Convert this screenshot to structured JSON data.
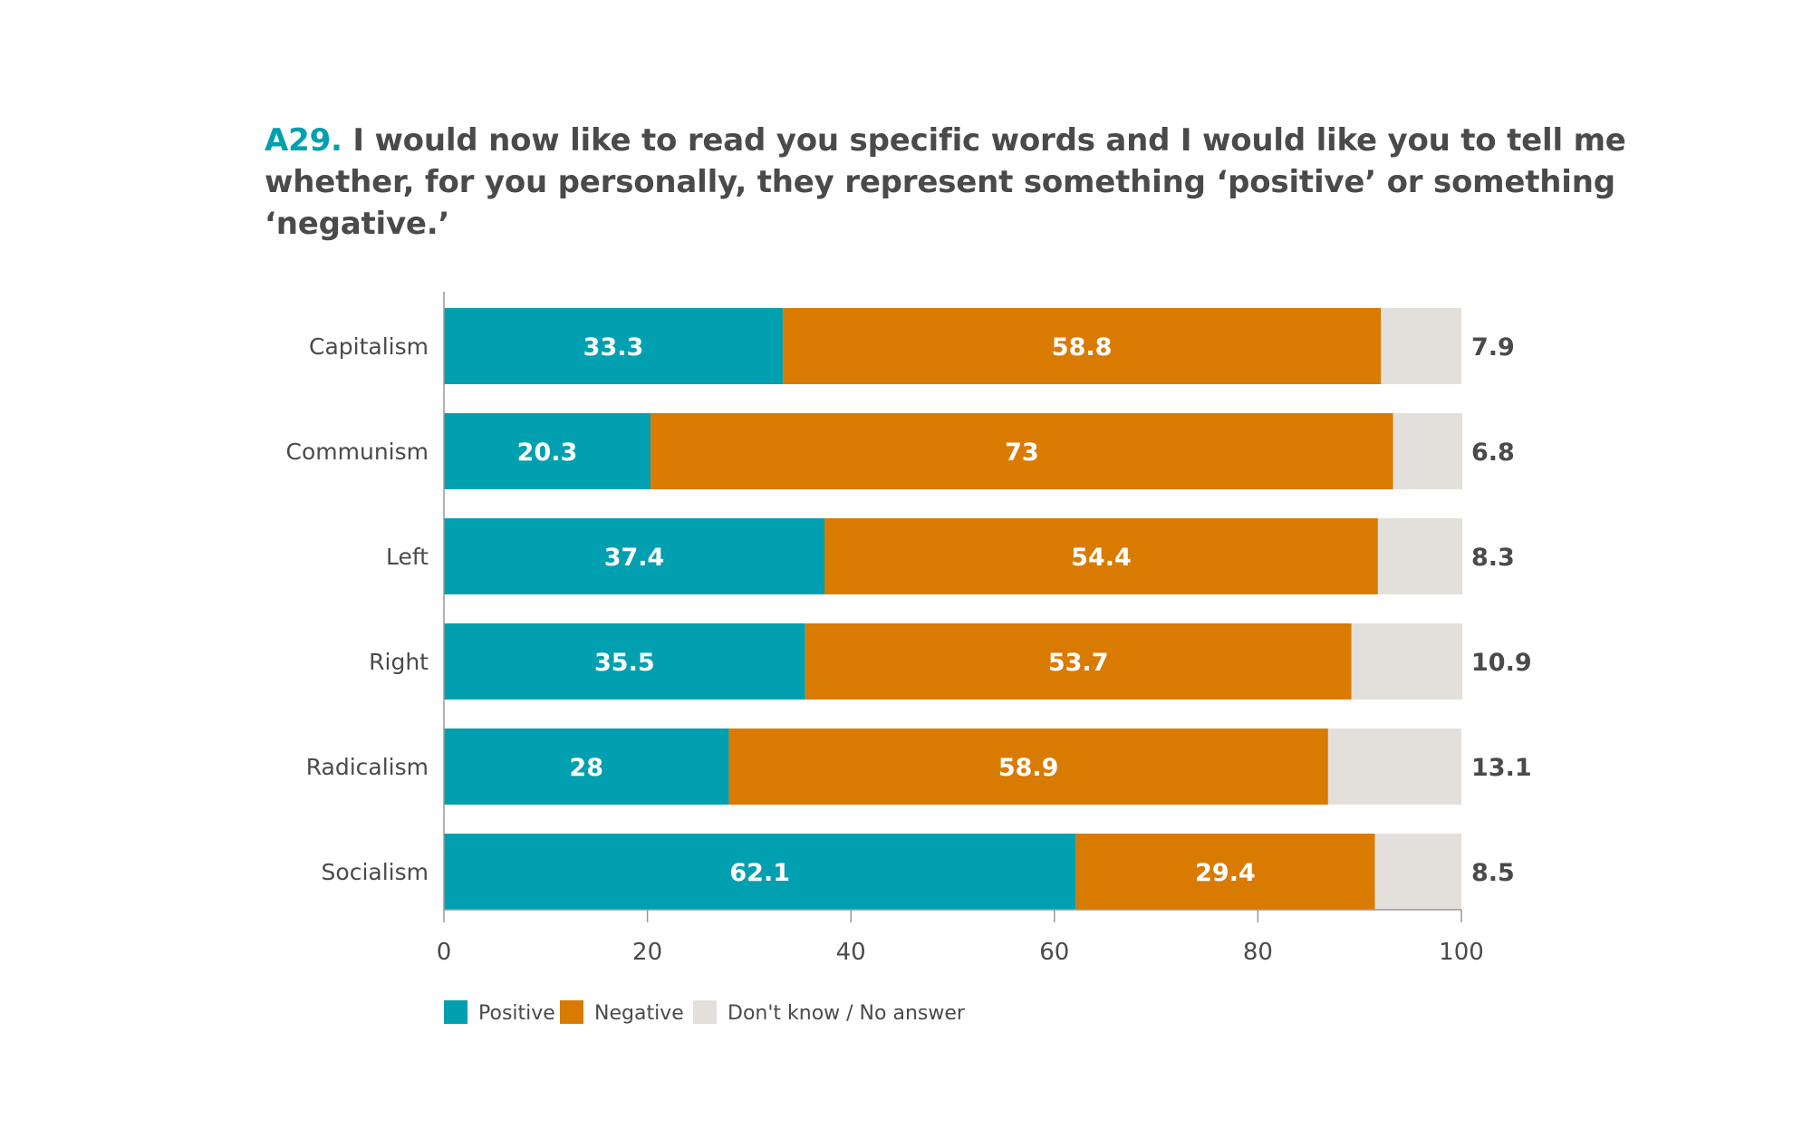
{
  "title": {
    "code": "A29.",
    "text": " I would now like to read you specific words and I would like you to tell me whether, for you personally, they represent something ‘positive’ or something ‘negative.’"
  },
  "colors": {
    "positive": "#00a0b0",
    "negative": "#d97b00",
    "dont_know": "#e3dfdb",
    "axis": "#999999",
    "text": "#4a4a4a"
  },
  "chart_data": {
    "type": "bar",
    "orientation": "horizontal",
    "stacked": true,
    "categories": [
      "Capitalism",
      "Communism",
      "Left",
      "Right",
      "Radicalism",
      "Socialism"
    ],
    "series": [
      {
        "name": "Positive",
        "values": [
          33.3,
          20.3,
          37.4,
          35.5,
          28,
          62.1
        ]
      },
      {
        "name": "Negative",
        "values": [
          58.8,
          73,
          54.4,
          53.7,
          58.9,
          29.4
        ]
      },
      {
        "name": "Don't know / No answer",
        "values": [
          7.9,
          6.8,
          8.3,
          10.9,
          13.1,
          8.5
        ]
      }
    ],
    "xlim": [
      0,
      100
    ],
    "xticks": [
      0,
      20,
      40,
      60,
      80,
      100
    ],
    "grid": false,
    "legend_position": "bottom-left",
    "data_labels": {
      "inside": [
        "Positive",
        "Negative"
      ],
      "outside_right": "Don't know / No answer"
    }
  }
}
